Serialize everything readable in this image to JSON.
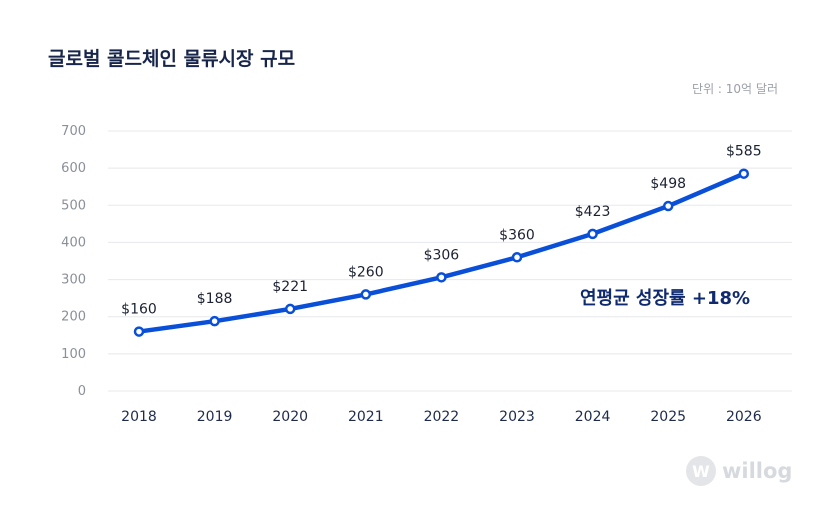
{
  "chart_data": {
    "type": "line",
    "title": "글로벌 콜드체인 물류시장 규모",
    "unit_label": "단위 : 10억 달러",
    "categories": [
      "2018",
      "2019",
      "2020",
      "2021",
      "2022",
      "2023",
      "2024",
      "2025",
      "2026"
    ],
    "values": [
      160,
      188,
      221,
      260,
      306,
      360,
      423,
      498,
      585
    ],
    "data_labels": [
      "$160",
      "$188",
      "$221",
      "$260",
      "$306",
      "$360",
      "$423",
      "$498",
      "$585"
    ],
    "yticks": [
      0,
      100,
      200,
      300,
      400,
      500,
      600,
      700
    ],
    "ylim": [
      0,
      700
    ],
    "grid": true,
    "annotation": "연평균 성장률 +18%",
    "colors": {
      "line": "#0a4fd8",
      "title": "#17254a",
      "annotation": "#0f2a6e",
      "grid": "#e6e8eb",
      "tick": "#8a9099",
      "xtick": "#1e2b4d"
    }
  },
  "logo": {
    "mark": "W",
    "text": "willog"
  }
}
